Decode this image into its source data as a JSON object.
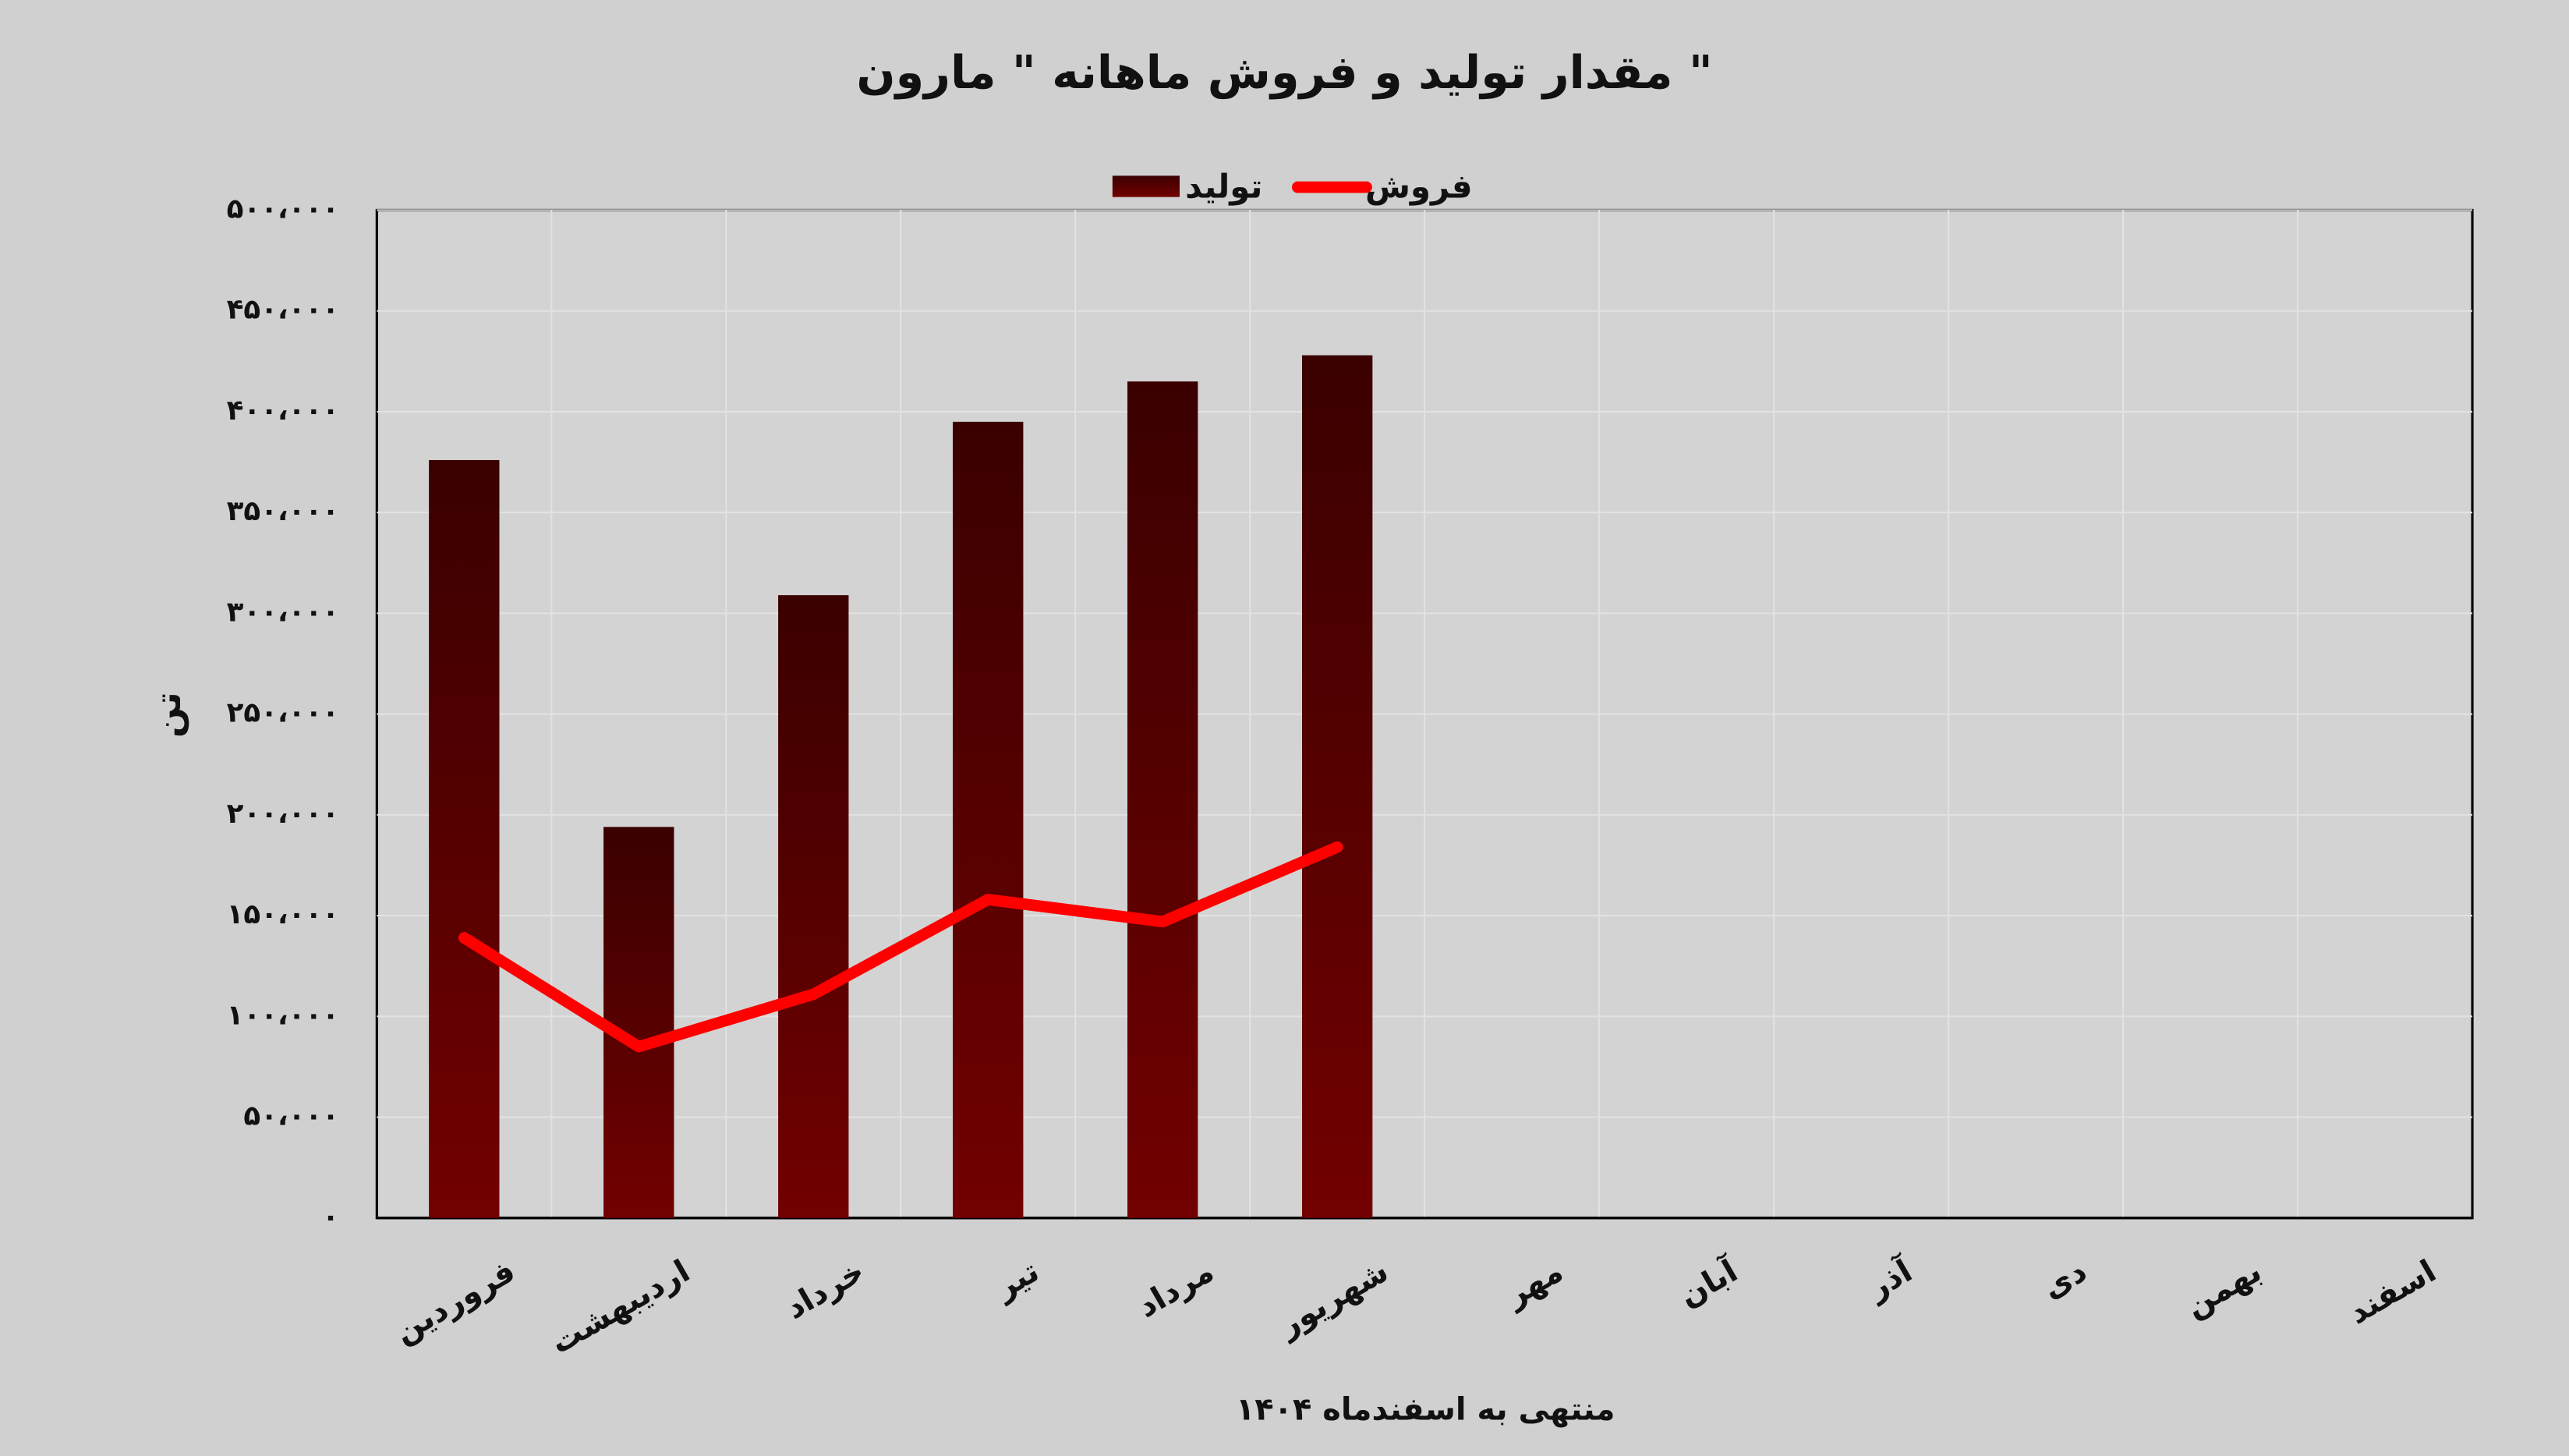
{
  "chart_data": {
    "type": "bar",
    "title": "مقدار تولید و فروش ماهانه \" مارون \"",
    "x_label": "منتهی به اسفندماه ۱۴۰۴",
    "y_label": "تن",
    "categories": [
      "فروردین",
      "اردیبهشت",
      "خرداد",
      "تیر",
      "مرداد",
      "شهریور",
      "مهر",
      "آبان",
      "آذر",
      "دی",
      "بهمن",
      "اسفند"
    ],
    "series": [
      {
        "name": "تولید",
        "type": "bar",
        "color": "#720000",
        "values": [
          376000,
          194000,
          309000,
          395000,
          415000,
          428000,
          null,
          null,
          null,
          null,
          null,
          null
        ]
      },
      {
        "name": "فروش",
        "type": "line",
        "color": "#ff0000",
        "values": [
          139000,
          85000,
          111000,
          158000,
          147000,
          184000,
          null,
          null,
          null,
          null,
          null,
          null
        ]
      }
    ],
    "ylim": [
      0,
      500000
    ],
    "yticks": [
      {
        "value": 0,
        "label": "۰"
      },
      {
        "value": 50000,
        "label": "۵۰،۰۰۰"
      },
      {
        "value": 100000,
        "label": "۱۰۰،۰۰۰"
      },
      {
        "value": 150000,
        "label": "۱۵۰،۰۰۰"
      },
      {
        "value": 200000,
        "label": "۲۰۰،۰۰۰"
      },
      {
        "value": 250000,
        "label": "۲۵۰،۰۰۰"
      },
      {
        "value": 300000,
        "label": "۳۰۰،۰۰۰"
      },
      {
        "value": 350000,
        "label": "۳۵۰،۰۰۰"
      },
      {
        "value": 400000,
        "label": "۴۰۰،۰۰۰"
      },
      {
        "value": 450000,
        "label": "۴۵۰،۰۰۰"
      },
      {
        "value": 500000,
        "label": "۵۰۰،۰۰۰"
      }
    ],
    "grid": true,
    "legend": "top"
  }
}
